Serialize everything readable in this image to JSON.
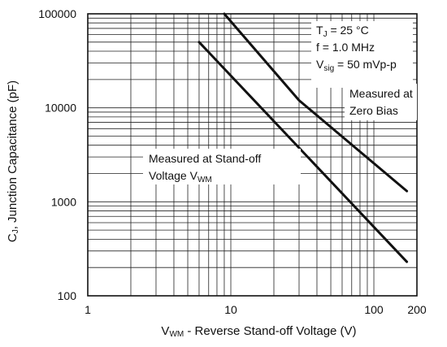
{
  "chart_data": {
    "type": "line",
    "xscale": "log",
    "yscale": "log",
    "xlim": [
      1,
      200
    ],
    "ylim": [
      100,
      100000
    ],
    "grid": true,
    "legend": "none",
    "xlabel": {
      "pre": "V",
      "sub": "WM",
      "post": " - Reverse Stand-off Voltage (V)"
    },
    "ylabel": {
      "pre": "C",
      "sub": "J",
      "post": ", Junction Capacitance (pF)"
    },
    "xticks": [
      {
        "value": 1,
        "label": "1"
      },
      {
        "value": 10,
        "label": "10"
      },
      {
        "value": 100,
        "label": "100"
      },
      {
        "value": 200,
        "label": "200"
      }
    ],
    "yticks": [
      {
        "value": 100,
        "label": "100"
      },
      {
        "value": 1000,
        "label": "1000"
      },
      {
        "value": 10000,
        "label": "10000"
      },
      {
        "value": 100000,
        "label": "100000"
      }
    ],
    "conditions": {
      "line1": {
        "pre": "T",
        "sub": "J",
        "post": " = 25 °C"
      },
      "line2": {
        "pre": "f = 1.0 MHz",
        "sub": "",
        "post": ""
      },
      "line3": {
        "pre": "V",
        "sub": "sig",
        "post": " = 50 mVp-p"
      }
    },
    "series": [
      {
        "label": {
          "line1": "Measured at",
          "line2": "Zero Bias"
        },
        "points": [
          [
            9,
            100000
          ],
          [
            30,
            12000
          ],
          [
            170,
            1300
          ]
        ]
      },
      {
        "label": {
          "line1": "Measured at Stand-off",
          "line2_pre": "Voltage V",
          "line2_sub": "WM"
        },
        "points": [
          [
            6,
            50000
          ],
          [
            170,
            230
          ]
        ]
      }
    ],
    "color": "#111111"
  }
}
